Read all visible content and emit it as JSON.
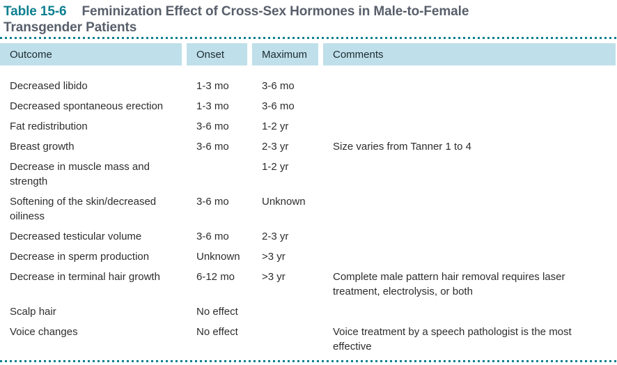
{
  "colors": {
    "accent_teal": "#0d7f90",
    "title_slate": "#585f6b",
    "header_background": "#bfe0ea",
    "body_text": "#2d2d2d"
  },
  "title": {
    "number": "Table 15-6",
    "caption_line1": "Feminization Effect of Cross-Sex Hormones in Male-to-Female",
    "caption_line2": "Transgender Patients"
  },
  "table": {
    "columns": [
      "Outcome",
      "Onset",
      "Maximum",
      "Comments"
    ],
    "rows": [
      {
        "outcome": "Decreased libido",
        "onset": "1-3 mo",
        "maximum": "3-6 mo",
        "comments": ""
      },
      {
        "outcome": "Decreased spontaneous erection",
        "onset": "1-3 mo",
        "maximum": "3-6 mo",
        "comments": ""
      },
      {
        "outcome": "Fat redistribution",
        "onset": "3-6 mo",
        "maximum": "1-2 yr",
        "comments": ""
      },
      {
        "outcome": "Breast growth",
        "onset": "3-6 mo",
        "maximum": "2-3 yr",
        "comments": "Size varies from Tanner 1 to 4"
      },
      {
        "outcome": "Decrease in muscle mass and strength",
        "onset": "",
        "maximum": "1-2 yr",
        "comments": ""
      },
      {
        "outcome": "Softening of the skin/decreased oiliness",
        "onset": "3-6 mo",
        "maximum": "Unknown",
        "comments": ""
      },
      {
        "outcome": "Decreased testicular volume",
        "onset": "3-6 mo",
        "maximum": "2-3 yr",
        "comments": ""
      },
      {
        "outcome": "Decrease in sperm production",
        "onset": "Unknown",
        "maximum": ">3 yr",
        "comments": ""
      },
      {
        "outcome": "Decrease in terminal hair growth",
        "onset": "6-12 mo",
        "maximum": ">3 yr",
        "comments": "Complete male pattern hair removal requires laser treatment, electrolysis, or both"
      },
      {
        "outcome": "Scalp hair",
        "onset": "No effect",
        "maximum": "",
        "comments": ""
      },
      {
        "outcome": "Voice changes",
        "onset": "No effect",
        "maximum": "",
        "comments": "Voice treatment by a speech pathologist is the most effective"
      }
    ]
  }
}
